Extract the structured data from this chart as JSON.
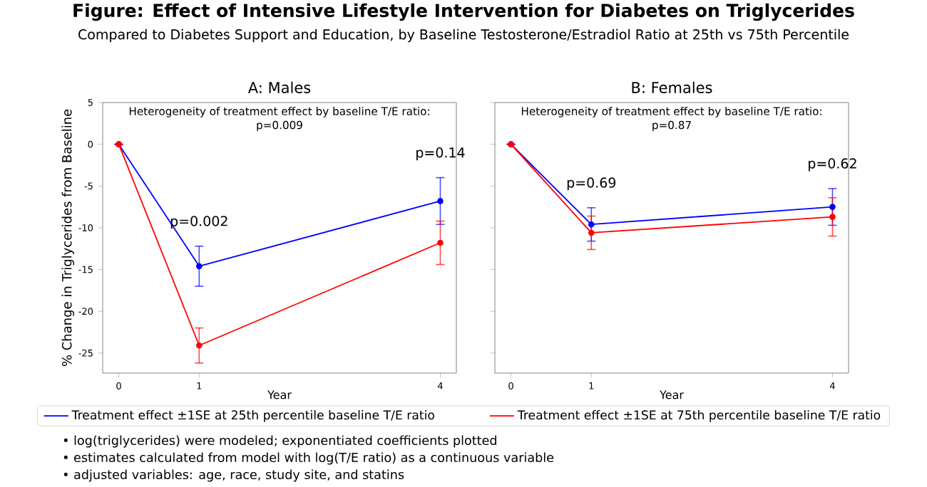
{
  "chart_data": [
    {
      "type": "other",
      "title": "Figure: Effect of Intensive Lifestyle Intervention for Diabetes on Triglycerides",
      "subtitle": "Compared to Diabetes Support and Education, by Baseline Testosterone/Estradiol Ratio at 25th vs 75th Percentile",
      "annotations": [
        "• log(triglycerides) were modeled; exponentiated coefficients plotted",
        "• estimates calculated from model with log(T/E ratio) as a continuous variable",
        "• adjusted variables: age, race, study site, and statins"
      ]
    },
    {
      "type": "line",
      "title": "A: Males",
      "xlabel": "Year",
      "ylabel": "% Change in Triglycerides from Baseline",
      "x": [
        0,
        1,
        4
      ],
      "xlim": [
        -0.2,
        4.2
      ],
      "ylim": [
        -27.4,
        5
      ],
      "xticks": [
        0,
        1,
        4
      ],
      "yticks": [
        5,
        0,
        -5,
        -10,
        -15,
        -20,
        -25
      ],
      "marker": "circle",
      "legend": "bottom",
      "series": [
        {
          "name": "Treatment effect ±1SE at 25th percentile baseline T/E ratio",
          "color": "#0000ff",
          "values": [
            0,
            -14.6,
            -6.8
          ],
          "errors": [
            null,
            2.4,
            2.8
          ]
        },
        {
          "name": "Treatment effect ±1SE at 75th percentile baseline T/E ratio",
          "color": "#ff0000",
          "values": [
            0,
            -24.1,
            -11.8
          ],
          "errors": [
            null,
            2.1,
            2.6
          ]
        }
      ],
      "annotations": [
        "Heterogeneity of treatment effect by baseline T/E ratio:",
        "p=0.009",
        "p=0.002",
        "p=0.14"
      ]
    },
    {
      "type": "line",
      "title": "B: Females",
      "xlabel": "Year",
      "x": [
        0,
        1,
        4
      ],
      "xlim": [
        -0.2,
        4.2
      ],
      "ylim": [
        -27.4,
        5
      ],
      "xticks": [
        0,
        1,
        4
      ],
      "yticks": [
        5,
        0,
        -5,
        -10,
        -15,
        -20,
        -25
      ],
      "marker": "circle",
      "tick_labels": "x",
      "series": [
        {
          "color": "#0000ff",
          "values": [
            0,
            -9.6,
            -7.5
          ],
          "errors": [
            null,
            2.0,
            2.2
          ]
        },
        {
          "color": "#ff0000",
          "values": [
            0,
            -10.6,
            -8.7
          ],
          "errors": [
            null,
            2.0,
            2.3
          ]
        }
      ],
      "annotations": [
        "Heterogeneity of treatment effect by baseline T/E ratio:",
        "p=0.87",
        "p=0.69",
        "p=0.62"
      ]
    }
  ]
}
